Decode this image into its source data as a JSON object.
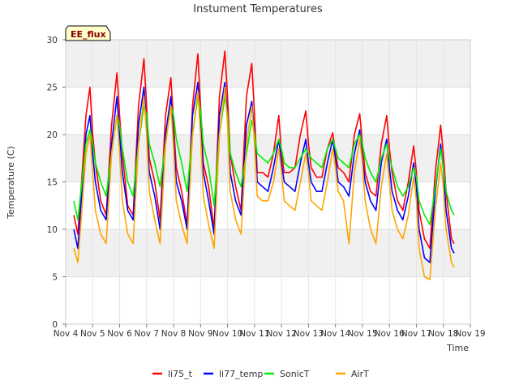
{
  "chart_data": {
    "type": "line",
    "title": "Instument Temperatures",
    "xlabel": "Time",
    "ylabel": "Temperature (C)",
    "badge": "EE_flux",
    "xlim": [
      4,
      19
    ],
    "ylim": [
      0,
      30
    ],
    "x_ticks": [
      {
        "v": 4,
        "label": "Nov 4"
      },
      {
        "v": 5,
        "label": "Nov 5"
      },
      {
        "v": 6,
        "label": "Nov 6"
      },
      {
        "v": 7,
        "label": "Nov 7"
      },
      {
        "v": 8,
        "label": "Nov 8"
      },
      {
        "v": 9,
        "label": "Nov 9"
      },
      {
        "v": 10,
        "label": "Nov 10"
      },
      {
        "v": 11,
        "label": "Nov 11"
      },
      {
        "v": 12,
        "label": "Nov 12"
      },
      {
        "v": 13,
        "label": "Nov 13"
      },
      {
        "v": 14,
        "label": "Nov 14"
      },
      {
        "v": 15,
        "label": "Nov 15"
      },
      {
        "v": 16,
        "label": "Nov 16"
      },
      {
        "v": 17,
        "label": "Nov 17"
      },
      {
        "v": 18,
        "label": "Nov 18"
      },
      {
        "v": 19,
        "label": "Nov 19"
      }
    ],
    "y_ticks": [
      0,
      5,
      10,
      15,
      20,
      25,
      30
    ],
    "grid": true,
    "legend_position": "bottom",
    "series": [
      {
        "name": "li75_t",
        "color": "#ff0000",
        "x": [
          4.3,
          4.45,
          4.6,
          4.75,
          4.9,
          5.0,
          5.1,
          5.3,
          5.5,
          5.7,
          5.9,
          6.0,
          6.1,
          6.3,
          6.5,
          6.7,
          6.9,
          7.0,
          7.1,
          7.3,
          7.5,
          7.7,
          7.9,
          8.0,
          8.1,
          8.3,
          8.5,
          8.7,
          8.9,
          9.0,
          9.1,
          9.3,
          9.5,
          9.7,
          9.9,
          10.0,
          10.1,
          10.3,
          10.5,
          10.7,
          10.9,
          11.0,
          11.1,
          11.3,
          11.5,
          11.7,
          11.9,
          12.0,
          12.1,
          12.3,
          12.5,
          12.7,
          12.9,
          13.0,
          13.1,
          13.3,
          13.5,
          13.7,
          13.9,
          14.0,
          14.1,
          14.3,
          14.5,
          14.7,
          14.9,
          15.0,
          15.1,
          15.3,
          15.5,
          15.7,
          15.9,
          16.0,
          16.1,
          16.3,
          16.5,
          16.7,
          16.9,
          17.0,
          17.1,
          17.3,
          17.5,
          17.7,
          17.9,
          18.0,
          18.1,
          18.3,
          18.4
        ],
        "values": [
          11.5,
          9.5,
          15.5,
          22,
          25,
          20,
          17,
          13,
          11.5,
          21,
          26.5,
          22,
          18,
          12.5,
          11.5,
          23,
          28,
          23,
          17.5,
          15,
          11,
          22,
          26,
          21,
          16.5,
          14,
          10.5,
          23,
          28.5,
          23,
          17,
          14.5,
          10,
          24,
          28.8,
          24,
          18,
          14.5,
          12,
          24,
          27.5,
          22,
          16,
          16,
          15.5,
          18,
          22,
          18,
          16,
          16,
          16.5,
          20,
          22.5,
          19,
          16.5,
          15.5,
          15.5,
          18.5,
          20.2,
          18,
          16.5,
          16,
          15,
          20,
          22.2,
          19,
          16,
          14,
          13.5,
          19,
          22,
          18.5,
          16,
          13,
          12,
          15,
          18.8,
          16,
          12,
          9,
          8,
          16,
          21,
          18,
          14,
          9,
          8.5
        ]
      },
      {
        "name": "li77_temp",
        "color": "#0000ff",
        "x": [
          4.3,
          4.45,
          4.6,
          4.75,
          4.9,
          5.0,
          5.1,
          5.3,
          5.5,
          5.7,
          5.9,
          6.0,
          6.1,
          6.3,
          6.5,
          6.7,
          6.9,
          7.0,
          7.1,
          7.3,
          7.5,
          7.7,
          7.9,
          8.0,
          8.1,
          8.3,
          8.5,
          8.7,
          8.9,
          9.0,
          9.1,
          9.3,
          9.5,
          9.7,
          9.9,
          10.0,
          10.1,
          10.3,
          10.5,
          10.7,
          10.9,
          11.0,
          11.1,
          11.3,
          11.5,
          11.7,
          11.9,
          12.0,
          12.1,
          12.3,
          12.5,
          12.7,
          12.9,
          13.0,
          13.1,
          13.3,
          13.5,
          13.7,
          13.9,
          14.0,
          14.1,
          14.3,
          14.5,
          14.7,
          14.9,
          15.0,
          15.1,
          15.3,
          15.5,
          15.7,
          15.9,
          16.0,
          16.1,
          16.3,
          16.5,
          16.7,
          16.9,
          17.0,
          17.1,
          17.3,
          17.5,
          17.7,
          17.9,
          18.0,
          18.1,
          18.3,
          18.4
        ],
        "values": [
          10,
          8,
          14,
          20,
          22,
          18,
          15,
          12,
          11,
          19,
          24,
          20,
          16,
          12,
          11,
          21,
          25,
          21,
          16,
          13.5,
          10,
          20,
          24,
          19.5,
          15,
          13,
          10,
          22,
          25.5,
          21,
          16,
          13,
          9.5,
          22,
          25.5,
          22,
          16,
          13,
          11.5,
          21,
          23.5,
          20,
          15,
          14.5,
          14,
          16.5,
          19.5,
          17,
          15,
          14.5,
          14,
          17,
          19.5,
          17,
          15,
          14,
          14,
          17,
          19.5,
          17.5,
          15,
          14.5,
          13.5,
          18,
          20.5,
          17.5,
          15,
          13,
          12,
          17,
          19.5,
          16.5,
          14,
          12,
          11,
          13.5,
          17,
          14.5,
          10,
          7,
          6.5,
          14,
          19,
          16.5,
          12,
          8,
          7.5
        ]
      },
      {
        "name": "SonicT",
        "color": "#00ee00",
        "x": [
          4.3,
          4.45,
          4.6,
          4.75,
          4.9,
          5.0,
          5.1,
          5.3,
          5.5,
          5.7,
          5.9,
          6.0,
          6.1,
          6.3,
          6.5,
          6.7,
          6.9,
          7.0,
          7.1,
          7.3,
          7.5,
          7.7,
          7.9,
          8.0,
          8.1,
          8.3,
          8.5,
          8.7,
          8.9,
          9.0,
          9.1,
          9.3,
          9.5,
          9.7,
          9.9,
          10.0,
          10.1,
          10.3,
          10.5,
          10.7,
          10.9,
          11.0,
          11.1,
          11.3,
          11.5,
          11.7,
          11.9,
          12.0,
          12.1,
          12.3,
          12.5,
          12.7,
          12.9,
          13.0,
          13.1,
          13.3,
          13.5,
          13.7,
          13.9,
          14.0,
          14.1,
          14.3,
          14.5,
          14.7,
          14.9,
          15.0,
          15.1,
          15.3,
          15.5,
          15.7,
          15.9,
          16.0,
          16.1,
          16.3,
          16.5,
          16.7,
          16.9,
          17.0,
          17.1,
          17.3,
          17.5,
          17.7,
          17.9,
          18.0,
          18.1,
          18.3,
          18.4
        ],
        "values": [
          13,
          11,
          15,
          19,
          20.5,
          19,
          17,
          15,
          13.5,
          18,
          22,
          21,
          18.5,
          15,
          13.5,
          19,
          23,
          22,
          19,
          17,
          14.5,
          19,
          23,
          22,
          19.5,
          17,
          14,
          20,
          24,
          22.5,
          19,
          16.5,
          12.5,
          20,
          24,
          22,
          18,
          16,
          14.5,
          18,
          21.5,
          20,
          18,
          17.5,
          17,
          18,
          19.5,
          18.5,
          17,
          16.5,
          16.5,
          17.5,
          18.5,
          18,
          17.5,
          17,
          16.5,
          18.5,
          19.5,
          18.5,
          17.5,
          17,
          16.5,
          19,
          20,
          19,
          17.5,
          16,
          15,
          17.5,
          19,
          17.5,
          16.5,
          14.5,
          13.5,
          14.5,
          16.5,
          15.5,
          13,
          11.5,
          10.5,
          14.5,
          18.5,
          16.5,
          14,
          12,
          11.5
        ]
      },
      {
        "name": "AirT",
        "color": "#ffa500",
        "x": [
          4.3,
          4.45,
          4.6,
          4.75,
          4.9,
          5.0,
          5.1,
          5.3,
          5.5,
          5.7,
          5.9,
          6.0,
          6.1,
          6.3,
          6.5,
          6.7,
          6.9,
          7.0,
          7.1,
          7.3,
          7.5,
          7.7,
          7.9,
          8.0,
          8.1,
          8.3,
          8.5,
          8.7,
          8.9,
          9.0,
          9.1,
          9.3,
          9.5,
          9.7,
          9.9,
          10.0,
          10.1,
          10.3,
          10.5,
          10.7,
          10.9,
          11.0,
          11.1,
          11.3,
          11.5,
          11.7,
          11.9,
          12.0,
          12.1,
          12.3,
          12.5,
          12.7,
          12.9,
          13.0,
          13.1,
          13.3,
          13.5,
          13.7,
          13.9,
          14.0,
          14.1,
          14.3,
          14.5,
          14.7,
          14.9,
          15.0,
          15.1,
          15.3,
          15.5,
          15.7,
          15.9,
          16.0,
          16.1,
          16.3,
          16.5,
          16.7,
          16.9,
          17.0,
          17.1,
          17.3,
          17.5,
          17.7,
          17.9,
          18.0,
          18.1,
          18.3,
          18.4
        ],
        "values": [
          8,
          6.5,
          12,
          18,
          20,
          16,
          12,
          9.5,
          8.5,
          18,
          22,
          18,
          13,
          9.5,
          8.5,
          19,
          24,
          20,
          14,
          11,
          8.5,
          19,
          23,
          18.5,
          13,
          10.5,
          8.5,
          20,
          24.5,
          20,
          13.5,
          10.5,
          8,
          20,
          25,
          21,
          14,
          11,
          9.5,
          19,
          23,
          19,
          13.5,
          13,
          13,
          15,
          18.5,
          16,
          13,
          12.5,
          12,
          15,
          18,
          16,
          13,
          12.5,
          12,
          15,
          18.5,
          16.5,
          14,
          13,
          8.5,
          16,
          19.5,
          17,
          13,
          10,
          8.5,
          14.5,
          18,
          15,
          12,
          10,
          9,
          11.5,
          15.5,
          13,
          8,
          5,
          4.7,
          12,
          17,
          14.5,
          10,
          6.5,
          6
        ]
      }
    ]
  }
}
